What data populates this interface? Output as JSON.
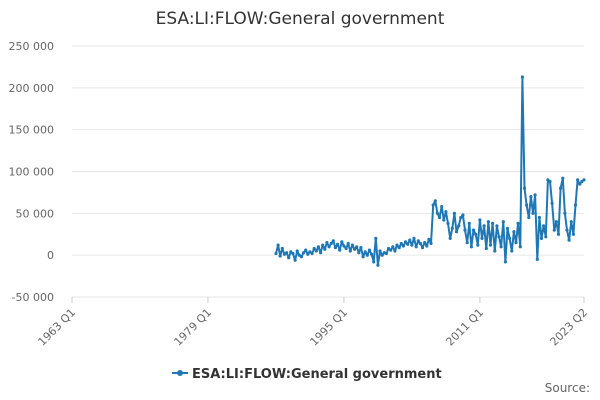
{
  "chart_data": {
    "type": "line",
    "title": "ESA:LI:FLOW:General government",
    "xlabel": "",
    "ylabel": "",
    "x_ticks": [
      "1963 Q1",
      "1979 Q1",
      "1995 Q1",
      "2011 Q1",
      "2023 Q2"
    ],
    "y_ticks": [
      "250 000",
      "200 000",
      "150 000",
      "100 000",
      "50 000",
      "0",
      "-50 000"
    ],
    "ylim": [
      -50000,
      250000
    ],
    "xlim": [
      1963.0,
      2023.25
    ],
    "grid": true,
    "legend_position": "bottom-center",
    "credits": "Source:",
    "color": "#1f77b4",
    "series": [
      {
        "name": "ESA:LI:FLOW:General government",
        "x": [
          1987.0,
          1987.25,
          1987.5,
          1987.75,
          1988.0,
          1988.25,
          1988.5,
          1988.75,
          1989.0,
          1989.25,
          1989.5,
          1989.75,
          1990.0,
          1990.25,
          1990.5,
          1990.75,
          1991.0,
          1991.25,
          1991.5,
          1991.75,
          1992.0,
          1992.25,
          1992.5,
          1992.75,
          1993.0,
          1993.25,
          1993.5,
          1993.75,
          1994.0,
          1994.25,
          1994.5,
          1994.75,
          1995.0,
          1995.25,
          1995.5,
          1995.75,
          1996.0,
          1996.25,
          1996.5,
          1996.75,
          1997.0,
          1997.25,
          1997.5,
          1997.75,
          1998.0,
          1998.25,
          1998.5,
          1998.75,
          1999.0,
          1999.25,
          1999.5,
          1999.75,
          2000.0,
          2000.25,
          2000.5,
          2000.75,
          2001.0,
          2001.25,
          2001.5,
          2001.75,
          2002.0,
          2002.25,
          2002.5,
          2002.75,
          2003.0,
          2003.25,
          2003.5,
          2003.75,
          2004.0,
          2004.25,
          2004.5,
          2004.75,
          2005.0,
          2005.25,
          2005.5,
          2005.75,
          2006.0,
          2006.25,
          2006.5,
          2006.75,
          2007.0,
          2007.25,
          2007.5,
          2007.75,
          2008.0,
          2008.25,
          2008.5,
          2008.75,
          2009.0,
          2009.25,
          2009.5,
          2009.75,
          2010.0,
          2010.25,
          2010.5,
          2010.75,
          2011.0,
          2011.25,
          2011.5,
          2011.75,
          2012.0,
          2012.25,
          2012.5,
          2012.75,
          2013.0,
          2013.25,
          2013.5,
          2013.75,
          2014.0,
          2014.25,
          2014.5,
          2014.75,
          2015.0,
          2015.25,
          2015.5,
          2015.75,
          2016.0,
          2016.25,
          2016.5,
          2016.75,
          2017.0,
          2017.25,
          2017.5,
          2017.75,
          2018.0,
          2018.25,
          2018.5,
          2018.75,
          2019.0,
          2019.25,
          2019.5,
          2019.75,
          2020.0,
          2020.25,
          2020.5,
          2020.75,
          2021.0,
          2021.25,
          2021.5,
          2021.75,
          2022.0,
          2022.25,
          2022.5,
          2022.75,
          2023.0,
          2023.25
        ],
        "values": [
          2000,
          12000,
          -1000,
          8000,
          1000,
          3000,
          -3000,
          4000,
          2000,
          -6000,
          5000,
          0,
          -2000,
          3000,
          6000,
          1000,
          4000,
          2000,
          8000,
          5000,
          10000,
          3000,
          12000,
          7000,
          15000,
          10000,
          14000,
          17000,
          9000,
          13000,
          6000,
          16000,
          11000,
          8000,
          14000,
          5000,
          12000,
          7000,
          10000,
          3000,
          9000,
          -2000,
          4000,
          0,
          6000,
          1000,
          -8000,
          20000,
          -12000,
          5000,
          0,
          3000,
          2000,
          8000,
          6000,
          10000,
          5000,
          12000,
          9000,
          14000,
          11000,
          16000,
          13000,
          18000,
          12000,
          20000,
          10000,
          17000,
          14000,
          9000,
          15000,
          11000,
          19000,
          14000,
          60000,
          65000,
          50000,
          45000,
          58000,
          42000,
          52000,
          38000,
          20000,
          32000,
          50000,
          28000,
          35000,
          45000,
          48000,
          30000,
          15000,
          38000,
          10000,
          30000,
          25000,
          12000,
          42000,
          20000,
          35000,
          8000,
          40000,
          12000,
          38000,
          5000,
          35000,
          22000,
          10000,
          40000,
          -8000,
          32000,
          20000,
          5000,
          28000,
          15000,
          38000,
          10000,
          213000,
          80000,
          60000,
          45000,
          70000,
          50000,
          72000,
          -5000,
          45000,
          20000,
          35000,
          22000,
          90000,
          88000,
          62000,
          30000,
          40000,
          25000,
          80000,
          92000,
          50000,
          30000,
          18000,
          40000,
          25000,
          60000,
          90000,
          85000,
          88000,
          90000
        ],
        "marker": "circle"
      }
    ]
  }
}
